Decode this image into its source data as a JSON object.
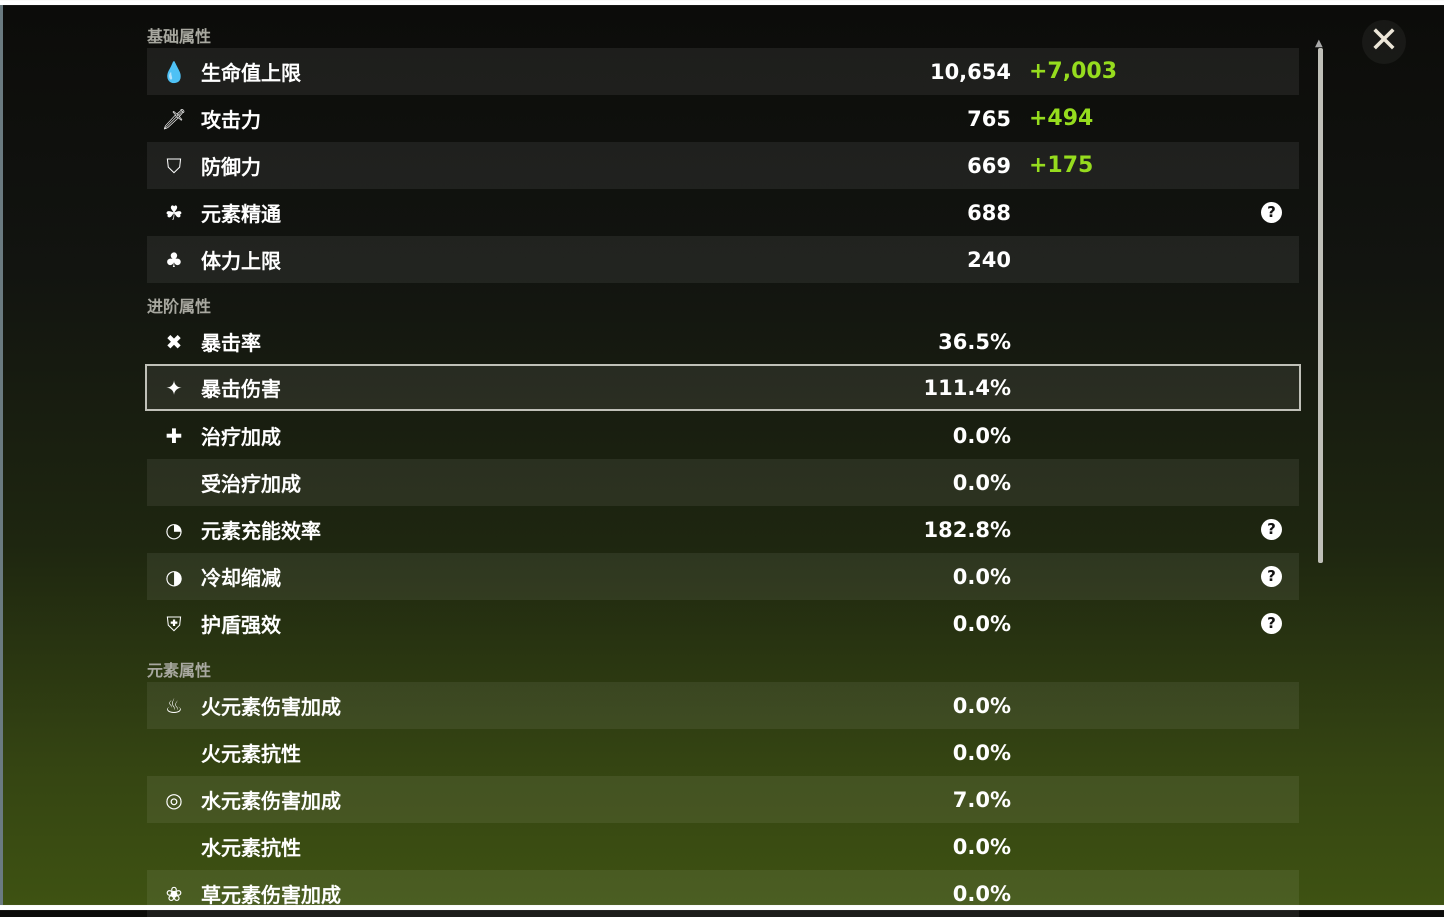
{
  "sections": {
    "basic": "基础属性",
    "advanced": "进阶属性",
    "elemental": "元素属性"
  },
  "basic": [
    {
      "icon": "hp-drop-icon",
      "label": "生命值上限",
      "value": "10,654",
      "bonus": "+7,003"
    },
    {
      "icon": "sword-icon",
      "label": "攻击力",
      "value": "765",
      "bonus": "+494"
    },
    {
      "icon": "shield-icon",
      "label": "防御力",
      "value": "669",
      "bonus": "+175"
    },
    {
      "icon": "elemental-mastery-icon",
      "label": "元素精通",
      "value": "688",
      "help": "?"
    },
    {
      "icon": "stamina-icon",
      "label": "体力上限",
      "value": "240"
    }
  ],
  "advanced": [
    {
      "icon": "crit-rate-icon",
      "label": "暴击率",
      "value": "36.5%"
    },
    {
      "icon": "crit-dmg-icon",
      "label": "暴击伤害",
      "value": "111.4%"
    },
    {
      "icon": "healing-cross-icon",
      "label": "治疗加成",
      "value": "0.0%"
    },
    {
      "label": "受治疗加成",
      "value": "0.0%"
    },
    {
      "icon": "energy-recharge-icon",
      "label": "元素充能效率",
      "value": "182.8%",
      "help": "?"
    },
    {
      "icon": "cooldown-icon",
      "label": "冷却缩减",
      "value": "0.0%",
      "help": "?"
    },
    {
      "icon": "shield-strength-icon",
      "label": "护盾强效",
      "value": "0.0%",
      "help": "?"
    }
  ],
  "elemental": [
    {
      "icon": "pyro-icon",
      "label": "火元素伤害加成",
      "value": "0.0%"
    },
    {
      "label": "火元素抗性",
      "value": "0.0%"
    },
    {
      "icon": "hydro-icon",
      "label": "水元素伤害加成",
      "value": "7.0%"
    },
    {
      "label": "水元素抗性",
      "value": "0.0%"
    },
    {
      "icon": "dendro-icon",
      "label": "草元素伤害加成",
      "value": "0.0%"
    }
  ],
  "close": "✕",
  "colors": {
    "bonus": "#96dc1e",
    "highlight_border": "#bfc0b8"
  }
}
